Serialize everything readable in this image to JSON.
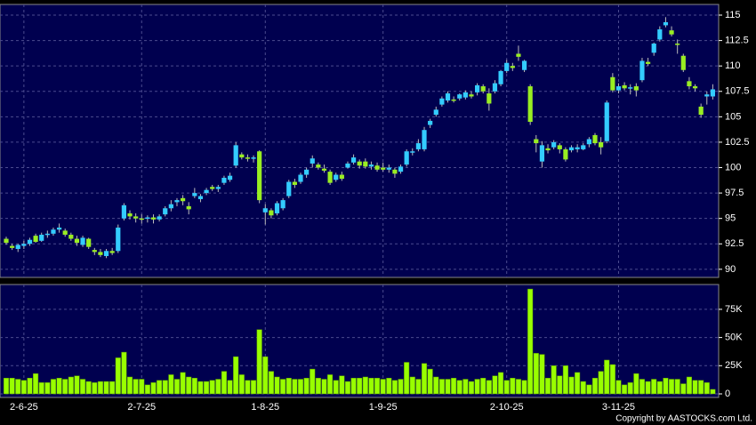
{
  "chart_data": {
    "type": "candlestick",
    "source": "Copyright by AASTOCKS.com Ltd.",
    "up_color": "#33ccff",
    "down_color": "#99ee22",
    "grid": true,
    "categories": [
      null,
      null,
      null,
      "2-6-25",
      null,
      null,
      null,
      null,
      null,
      null,
      null,
      null,
      null,
      null,
      null,
      null,
      null,
      null,
      null,
      null,
      null,
      null,
      null,
      "2-7-25",
      null,
      null,
      null,
      null,
      null,
      null,
      null,
      null,
      null,
      null,
      null,
      null,
      null,
      null,
      null,
      null,
      null,
      null,
      null,
      null,
      "1-8-25",
      null,
      null,
      null,
      null,
      null,
      null,
      null,
      null,
      null,
      null,
      null,
      null,
      null,
      null,
      null,
      null,
      null,
      null,
      null,
      "1-9-25",
      null,
      null,
      null,
      null,
      null,
      null,
      null,
      null,
      null,
      null,
      null,
      null,
      null,
      null,
      null,
      null,
      null,
      null,
      null,
      null,
      "2-10-25",
      null,
      null,
      null,
      null,
      null,
      null,
      null,
      null,
      null,
      null,
      null,
      null,
      null,
      null,
      null,
      null,
      null,
      null,
      "3-11-25",
      null,
      null,
      null,
      null,
      null,
      null,
      null,
      null,
      null,
      null,
      null,
      null,
      null,
      null,
      null,
      null
    ],
    "open": [
      93.0,
      92.3,
      92.0,
      92.3,
      92.5,
      93.3,
      92.8,
      93.4,
      93.5,
      93.9,
      93.8,
      93.4,
      93.0,
      92.4,
      93.0,
      91.9,
      91.7,
      91.3,
      91.8,
      91.8,
      95.0,
      95.5,
      95.2,
      95.0,
      95.0,
      95.1,
      94.9,
      95.4,
      96.0,
      96.6,
      97.0,
      96.2,
      97.2,
      96.9,
      97.5,
      98.1,
      97.9,
      98.5,
      98.8,
      100.2,
      101.3,
      101.0,
      100.9,
      101.6,
      95.6,
      95.8,
      95.5,
      96.0,
      97.2,
      98.6,
      98.6,
      99.3,
      100.4,
      100.3,
      99.9,
      99.6,
      98.8,
      99.3,
      100.0,
      100.5,
      100.6,
      100.6,
      100.1,
      100.2,
      100.0,
      99.8,
      99.8,
      99.6,
      100.3,
      101.5,
      101.8,
      101.8,
      104.2,
      105.2,
      106.2,
      106.6,
      106.7,
      106.8,
      106.9,
      107.2,
      107.4,
      108.0,
      107.3,
      107.5,
      108.2,
      109.5,
      110.0,
      111.2,
      109.6,
      108.0,
      102.8,
      100.6,
      101.9,
      102.0,
      102.2,
      101.8,
      101.7,
      101.8,
      101.8,
      102.3,
      103.2,
      102.5,
      102.6,
      108.9,
      107.6,
      108.1,
      107.8,
      108.0,
      108.6,
      110.4,
      111.3,
      112.6,
      114.0,
      113.5,
      112.2,
      111.0,
      108.5,
      108.0,
      106.0,
      107.0,
      107.0
    ],
    "high": [
      93.2,
      92.5,
      92.5,
      92.8,
      93.1,
      93.5,
      93.6,
      93.8,
      94.1,
      94.5,
      94.0,
      93.6,
      93.3,
      93.3,
      93.1,
      92.1,
      92.0,
      92.0,
      92.1,
      94.4,
      96.5,
      95.8,
      95.5,
      95.4,
      95.3,
      95.4,
      95.4,
      96.2,
      96.8,
      97.0,
      97.3,
      96.6,
      98.0,
      97.4,
      98.0,
      98.3,
      98.3,
      99.2,
      99.5,
      102.5,
      101.5,
      101.3,
      101.2,
      101.7,
      96.4,
      96.0,
      96.7,
      97.0,
      98.8,
      98.9,
      99.5,
      100.0,
      101.2,
      100.5,
      100.3,
      99.8,
      99.5,
      99.6,
      100.6,
      101.3,
      100.8,
      100.9,
      100.6,
      100.5,
      100.5,
      100.3,
      100.0,
      100.3,
      101.8,
      101.9,
      102.8,
      104.0,
      104.8,
      106.0,
      107.0,
      107.5,
      107.0,
      107.3,
      107.6,
      107.5,
      108.3,
      108.2,
      107.8,
      108.6,
      109.6,
      110.6,
      110.3,
      112.0,
      110.6,
      108.2,
      103.2,
      102.6,
      102.3,
      102.7,
      102.4,
      102.0,
      102.2,
      102.3,
      102.4,
      103.0,
      103.4,
      103.0,
      106.6,
      109.3,
      108.3,
      108.4,
      108.2,
      108.3,
      110.8,
      110.8,
      112.3,
      113.9,
      114.8,
      113.9,
      112.6,
      111.2,
      108.9,
      108.2,
      106.3,
      107.5,
      108.2
    ],
    "low": [
      92.4,
      91.9,
      91.7,
      92.0,
      92.3,
      92.6,
      92.7,
      93.1,
      93.3,
      93.6,
      93.2,
      92.8,
      92.3,
      92.2,
      92.0,
      91.4,
      91.2,
      91.1,
      91.4,
      91.6,
      94.8,
      94.9,
      94.6,
      94.5,
      94.6,
      94.5,
      94.7,
      95.2,
      95.7,
      96.2,
      96.3,
      95.4,
      97.0,
      96.6,
      97.3,
      97.7,
      97.6,
      98.3,
      98.6,
      100.0,
      100.8,
      100.6,
      100.5,
      96.5,
      94.4,
      95.0,
      95.3,
      95.8,
      97.0,
      98.0,
      98.4,
      99.0,
      100.0,
      99.8,
      99.5,
      98.3,
      98.6,
      98.7,
      99.9,
      100.3,
      99.9,
      99.9,
      99.8,
      99.6,
      99.6,
      99.5,
      99.0,
      99.4,
      100.1,
      101.2,
      101.6,
      101.6,
      103.9,
      105.0,
      106.0,
      106.4,
      106.4,
      106.6,
      106.7,
      106.8,
      107.1,
      107.3,
      105.6,
      107.3,
      108.0,
      109.3,
      109.5,
      110.5,
      109.4,
      104.2,
      101.5,
      100.0,
      101.4,
      101.8,
      101.4,
      100.6,
      101.5,
      101.5,
      101.7,
      102.0,
      102.2,
      101.3,
      102.4,
      107.4,
      107.3,
      107.6,
      107.2,
      107.0,
      108.4,
      110.0,
      111.0,
      112.4,
      113.8,
      112.9,
      111.2,
      109.4,
      107.7,
      107.5,
      104.9,
      106.2,
      106.7
    ],
    "close": [
      92.6,
      92.1,
      92.4,
      92.5,
      92.9,
      92.7,
      93.4,
      93.5,
      93.9,
      94.1,
      93.4,
      93.0,
      92.6,
      93.1,
      92.2,
      91.7,
      91.4,
      91.8,
      91.6,
      94.1,
      96.3,
      95.2,
      95.0,
      94.9,
      95.1,
      94.9,
      95.2,
      96.0,
      96.4,
      96.8,
      96.7,
      95.9,
      97.5,
      97.2,
      97.8,
      97.9,
      98.1,
      99.0,
      99.2,
      102.2,
      101.0,
      100.9,
      101.0,
      96.8,
      96.0,
      95.3,
      96.5,
      96.8,
      98.6,
      98.3,
      99.3,
      99.8,
      100.9,
      100.0,
      99.7,
      98.5,
      99.3,
      98.9,
      100.4,
      101.0,
      100.2,
      100.1,
      100.3,
      99.8,
      99.8,
      100.0,
      99.4,
      100.1,
      101.6,
      101.6,
      102.4,
      103.7,
      104.6,
      105.7,
      106.8,
      107.3,
      106.6,
      107.2,
      107.4,
      107.0,
      108.1,
      107.5,
      106.3,
      108.3,
      109.5,
      110.3,
      109.8,
      110.9,
      110.5,
      104.5,
      102.4,
      102.2,
      101.7,
      102.5,
      101.8,
      100.8,
      102.0,
      102.0,
      102.2,
      102.8,
      102.4,
      102.0,
      106.4,
      107.6,
      108.0,
      107.8,
      107.9,
      107.6,
      110.5,
      110.2,
      112.2,
      113.6,
      114.3,
      113.1,
      112.1,
      109.6,
      108.0,
      107.8,
      105.2,
      107.2,
      107.7
    ],
    "ylim": [
      89.2,
      116.05
    ],
    "yticks": [
      90,
      92.5,
      95,
      97.5,
      100,
      102.5,
      105,
      107.5,
      110,
      112.5,
      115
    ],
    "volume": {
      "color": "#99ff00",
      "values": [
        14000,
        14000,
        13000,
        12000,
        14000,
        18000,
        10000,
        10000,
        13000,
        14000,
        13000,
        15000,
        16000,
        13000,
        11000,
        10000,
        11000,
        11000,
        11000,
        32000,
        37000,
        15000,
        13000,
        13000,
        8000,
        10000,
        12000,
        12000,
        17000,
        13000,
        19000,
        15000,
        14000,
        11000,
        11000,
        12000,
        13000,
        20000,
        12000,
        33000,
        17000,
        12000,
        12000,
        57000,
        33000,
        20000,
        15000,
        13000,
        14000,
        13000,
        13000,
        14000,
        22000,
        14000,
        13000,
        17000,
        12000,
        16000,
        11000,
        14000,
        14000,
        15000,
        14000,
        14000,
        13000,
        14000,
        12000,
        13000,
        28000,
        15000,
        13000,
        27000,
        22000,
        15000,
        13000,
        13000,
        14000,
        12000,
        13000,
        11000,
        13000,
        14000,
        12000,
        16000,
        19000,
        12000,
        14000,
        13000,
        12000,
        93000,
        36000,
        35000,
        14000,
        25000,
        16000,
        25000,
        15000,
        19000,
        11000,
        8000,
        14000,
        20000,
        30000,
        26000,
        12000,
        8000,
        10000,
        18000,
        13000,
        11000,
        13000,
        11000,
        14000,
        13000,
        13000,
        9000,
        15000,
        12000,
        12000,
        10000,
        4000
      ],
      "ylim": [
        0,
        97000
      ],
      "yticks": [
        {
          "value": 0,
          "label": "0"
        },
        {
          "value": 25000,
          "label": "25K"
        },
        {
          "value": 50000,
          "label": "50K"
        },
        {
          "value": 75000,
          "label": "75K"
        }
      ]
    }
  }
}
